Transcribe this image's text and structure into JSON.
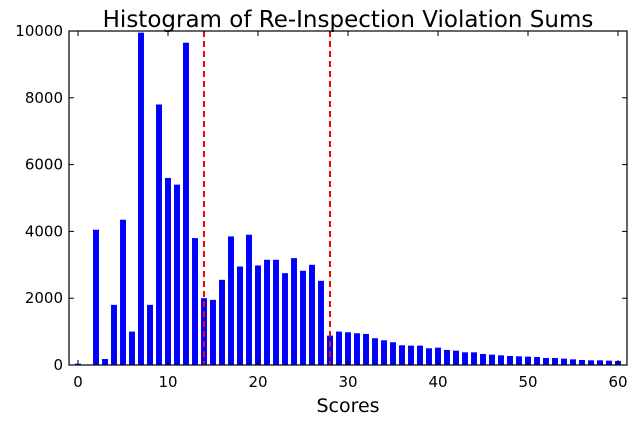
{
  "chart_data": {
    "type": "bar",
    "title": "Histogram of Re-Inspection Violation Sums",
    "xlabel": "Scores",
    "ylabel": "",
    "xlim": [
      -1,
      61
    ],
    "ylim": [
      0,
      10000
    ],
    "xticks": [
      0,
      10,
      20,
      30,
      40,
      50,
      60
    ],
    "yticks": [
      0,
      2000,
      4000,
      6000,
      8000,
      10000
    ],
    "grid": false,
    "bar_color": "#0000ff",
    "reference_lines": [
      {
        "x": 14,
        "color": "#ff0000",
        "style": "dashed"
      },
      {
        "x": 28,
        "color": "#ff0000",
        "style": "dashed"
      }
    ],
    "x": [
      0,
      1,
      2,
      3,
      4,
      5,
      6,
      7,
      8,
      9,
      10,
      11,
      12,
      13,
      14,
      15,
      16,
      17,
      18,
      19,
      20,
      21,
      22,
      23,
      24,
      25,
      26,
      27,
      28,
      29,
      30,
      31,
      32,
      33,
      34,
      35,
      36,
      37,
      38,
      39,
      40,
      41,
      42,
      43,
      44,
      45,
      46,
      47,
      48,
      49,
      50,
      51,
      52,
      53,
      54,
      55,
      56,
      57,
      58,
      59,
      60
    ],
    "values": [
      40,
      0,
      4050,
      180,
      1800,
      4350,
      1000,
      9950,
      1800,
      7800,
      5600,
      5400,
      9650,
      3800,
      2000,
      1950,
      2550,
      3850,
      2950,
      3900,
      2980,
      3150,
      3150,
      2750,
      3200,
      2820,
      3000,
      2520,
      880,
      1000,
      980,
      950,
      930,
      800,
      740,
      680,
      590,
      580,
      580,
      500,
      520,
      450,
      430,
      380,
      380,
      330,
      310,
      290,
      270,
      260,
      250,
      240,
      210,
      210,
      190,
      170,
      150,
      140,
      140,
      130,
      120
    ]
  }
}
